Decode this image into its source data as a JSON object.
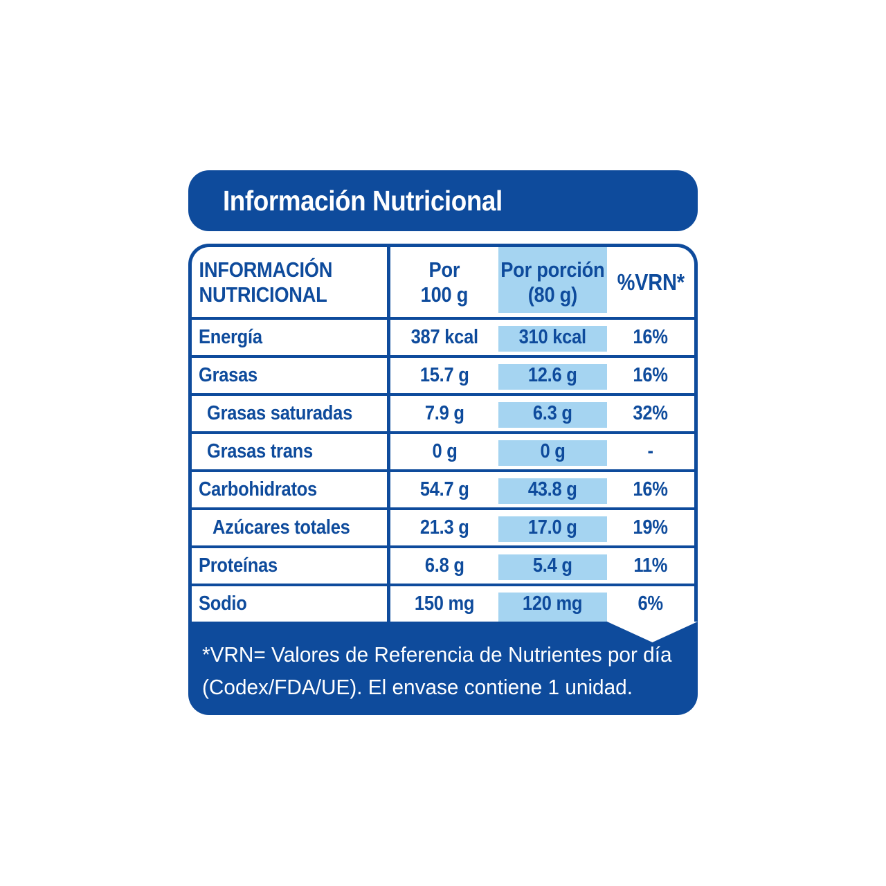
{
  "title_bar": {
    "text": "Información Nutricional"
  },
  "table": {
    "header": {
      "col1_line1": "INFORMACIÓN",
      "col1_line2": "NUTRICIONAL",
      "col2_line1": "Por",
      "col2_line2": "100 g",
      "col3_line1": "Por porción",
      "col3_line2": "(80 g)",
      "col4": "%VRN*"
    },
    "rows": [
      {
        "label": "Energía",
        "indent": 0,
        "per100": "387 kcal",
        "portion": "310 kcal",
        "vrn": "16%"
      },
      {
        "label": "Grasas",
        "indent": 0,
        "per100": "15.7 g",
        "portion": "12.6 g",
        "vrn": "16%"
      },
      {
        "label": "Grasas saturadas",
        "indent": 1,
        "per100": "7.9 g",
        "portion": "6.3 g",
        "vrn": "32%"
      },
      {
        "label": "Grasas trans",
        "indent": 1,
        "per100": "0 g",
        "portion": "0 g",
        "vrn": "-"
      },
      {
        "label": "Carbohidratos",
        "indent": 0,
        "per100": "54.7 g",
        "portion": "43.8 g",
        "vrn": "16%"
      },
      {
        "label": "Azúcares totales",
        "indent": 2,
        "per100": "21.3 g",
        "portion": "17.0 g",
        "vrn": "19%"
      },
      {
        "label": "Proteínas",
        "indent": 0,
        "per100": "6.8 g",
        "portion": "5.4 g",
        "vrn": "11%"
      },
      {
        "label": "Sodio",
        "indent": 0,
        "per100": "150 mg",
        "portion": "120 mg",
        "vrn": "6%"
      }
    ]
  },
  "footer": {
    "line1": "*VRN= Valores de Referencia de Nutrientes por día",
    "line2": "(Codex/FDA/UE). El envase contiene 1 unidad."
  },
  "colors": {
    "primary_blue": "#0e4b9c",
    "highlight_blue": "#a5d4f1",
    "text_on_blue": "#ffffff"
  }
}
